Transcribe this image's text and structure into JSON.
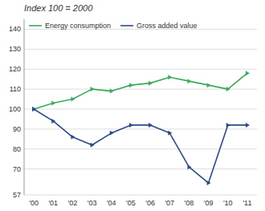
{
  "chart_data": {
    "type": "line",
    "title": "Index 100 = 2000",
    "categories": [
      "'00",
      "'01",
      "'02",
      "'03",
      "'04",
      "'05",
      "'06",
      "'07",
      "'08",
      "'09",
      "'10",
      "'11"
    ],
    "series": [
      {
        "name": "Energy consumption",
        "color": "#3aaa5c",
        "marker": "triangle-right",
        "values": [
          100,
          103,
          105,
          110,
          109,
          112,
          113,
          116,
          114,
          112,
          110,
          118
        ]
      },
      {
        "name": "Gross added value",
        "color": "#2b4a8c",
        "marker": "triangle-right",
        "values": [
          100,
          94,
          86,
          82,
          88,
          92,
          92,
          88,
          71,
          63,
          92,
          92
        ]
      }
    ],
    "ylim": [
      57,
      145
    ],
    "yticks": [
      57,
      70,
      80,
      90,
      100,
      110,
      120,
      130,
      140
    ],
    "grid": true,
    "legend": "upper left"
  }
}
